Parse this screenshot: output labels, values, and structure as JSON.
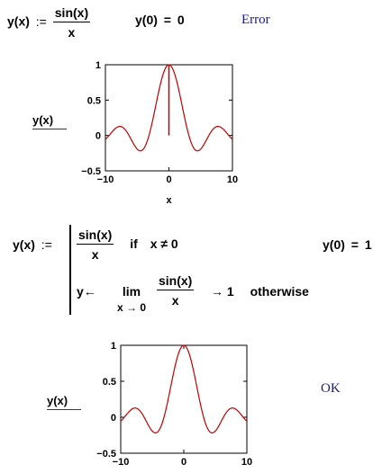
{
  "definition1": {
    "lhs": "y(x)",
    "assign": ":=",
    "numerator": "sin(x)",
    "denominator": "x"
  },
  "eval1": {
    "expr": "y(0)",
    "equals": "=",
    "result": "0",
    "status": "Error"
  },
  "chart_data": [
    {
      "type": "line",
      "series": [
        {
          "function": "sin(x)/x",
          "color": "#c00000"
        }
      ],
      "x_domain": [
        -10,
        10
      ],
      "y_domain": [
        -0.5,
        1
      ],
      "xticks": [
        "−10",
        "0",
        "10"
      ],
      "yticks": [
        "1",
        "0.5",
        "0",
        "−0.5"
      ],
      "xlabel": "x",
      "ylabel": "y(x)",
      "spike_at_zero": true
    },
    {
      "type": "line",
      "series": [
        {
          "function": "sin(x)/x",
          "color": "#c00000"
        }
      ],
      "x_domain": [
        -10,
        10
      ],
      "y_domain": [
        -0.5,
        1
      ],
      "xticks": [
        "−10",
        "0",
        "10"
      ],
      "yticks": [
        "1",
        "0.5",
        "0",
        "−0.5"
      ],
      "xlabel": "",
      "ylabel": "y(x)",
      "spike_at_zero": false
    }
  ],
  "definition2": {
    "lhs": "y(x)",
    "assign": ":=",
    "case1": {
      "numerator": "sin(x)",
      "denominator": "x",
      "if_word": "if",
      "condition": "x ≠ 0"
    },
    "case2": {
      "var": "y",
      "arrow": "←",
      "lim": "lim",
      "lim_sub": "x → 0",
      "numerator": "sin(x)",
      "denominator": "x",
      "result": "→ 1",
      "otherwise": "otherwise"
    }
  },
  "eval2": {
    "expr": "y(0)",
    "equals": "=",
    "result": "1",
    "status": "OK"
  }
}
